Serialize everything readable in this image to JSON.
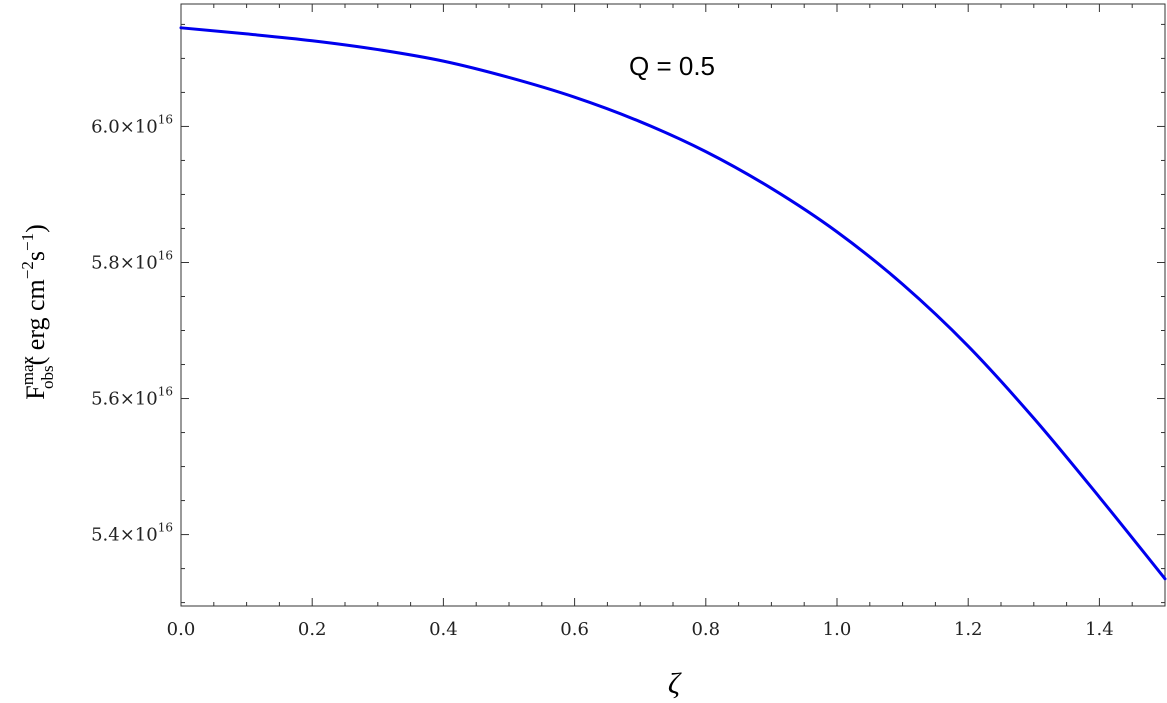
{
  "chart_data": {
    "type": "line",
    "xlabel": "ζ",
    "ylabel": {
      "base": "F",
      "superscript": "max",
      "subscript": "obs",
      "units_open": "( erg cm",
      "units_exp1": "−2",
      "units_mid": "s",
      "units_exp2": "−1",
      "units_close": ")"
    },
    "annotation": "Q = 0.5",
    "xlim": [
      0,
      1.5
    ],
    "ylim": [
      5.295e+16,
      6.18e+16
    ],
    "x_ticks": [
      {
        "value": 0.0,
        "label": "0.0"
      },
      {
        "value": 0.2,
        "label": "0.2"
      },
      {
        "value": 0.4,
        "label": "0.4"
      },
      {
        "value": 0.6,
        "label": "0.6"
      },
      {
        "value": 0.8,
        "label": "0.8"
      },
      {
        "value": 1.0,
        "label": "1.0"
      },
      {
        "value": 1.2,
        "label": "1.2"
      },
      {
        "value": 1.4,
        "label": "1.4"
      }
    ],
    "y_ticks": [
      {
        "value": 5.4e+16,
        "mantissa": "5.4",
        "times": "×10",
        "exponent": "16"
      },
      {
        "value": 5.6e+16,
        "mantissa": "5.6",
        "times": "×10",
        "exponent": "16"
      },
      {
        "value": 5.8e+16,
        "mantissa": "5.8",
        "times": "×10",
        "exponent": "16"
      },
      {
        "value": 6e+16,
        "mantissa": "6.0",
        "times": "×10",
        "exponent": "16"
      }
    ],
    "grid": false,
    "series": [
      {
        "color": "#0000ee",
        "x": [
          0.0,
          0.1,
          0.2,
          0.3,
          0.4,
          0.5,
          0.6,
          0.7,
          0.8,
          0.9,
          1.0,
          1.1,
          1.2,
          1.3,
          1.4,
          1.5
        ],
        "y": [
          6.145e+16,
          6.136e+16,
          6.126e+16,
          6.113e+16,
          6.096e+16,
          6.072e+16,
          6.043e+16,
          6.007e+16,
          5.963e+16,
          5.909e+16,
          5.845e+16,
          5.768e+16,
          5.677e+16,
          5.571e+16,
          5.455e+16,
          5.335e+16
        ]
      }
    ]
  }
}
